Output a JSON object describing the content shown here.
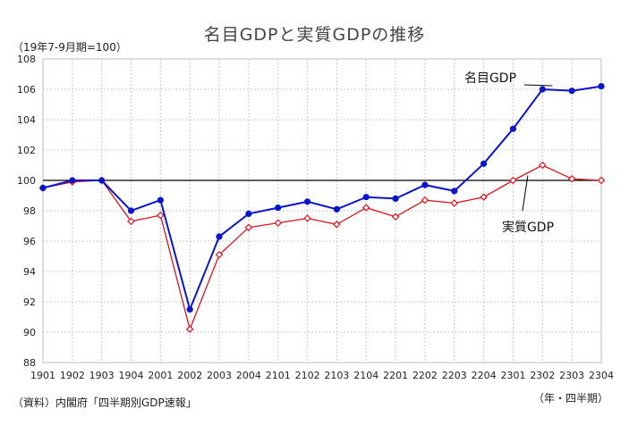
{
  "chart_data": {
    "type": "line",
    "title": "名目GDPと実質GDPの推移",
    "ylabel": "（19年7-9月期=100）",
    "xlabel": "（年・四半期）",
    "source": "（資料）内閣府「四半期別GDP速報」",
    "categories": [
      "1901",
      "1902",
      "1903",
      "1904",
      "2001",
      "2002",
      "2003",
      "2004",
      "2101",
      "2102",
      "2103",
      "2104",
      "2201",
      "2202",
      "2203",
      "2204",
      "2301",
      "2302",
      "2303",
      "2304"
    ],
    "ylim": [
      88,
      108
    ],
    "yticks": [
      "88",
      "90",
      "92",
      "94",
      "96",
      "98",
      "100",
      "102",
      "104",
      "106",
      "108"
    ],
    "reference_line": 100,
    "grid": true,
    "series": [
      {
        "name": "名目GDP",
        "color": "#0a14c8",
        "marker": "filled-circle",
        "values": [
          99.5,
          100.0,
          100.0,
          98.0,
          98.7,
          91.5,
          96.3,
          97.8,
          98.2,
          98.6,
          98.1,
          98.9,
          98.8,
          99.7,
          99.3,
          101.1,
          103.4,
          106.0,
          105.9,
          106.2
        ]
      },
      {
        "name": "実質GDP",
        "color": "#d8141e",
        "marker": "open-diamond",
        "values": [
          99.5,
          99.9,
          100.0,
          97.3,
          97.7,
          90.2,
          95.1,
          96.9,
          97.2,
          97.5,
          97.1,
          98.2,
          97.6,
          98.7,
          98.5,
          98.9,
          100.0,
          101.0,
          100.1,
          100.0
        ]
      }
    ]
  }
}
